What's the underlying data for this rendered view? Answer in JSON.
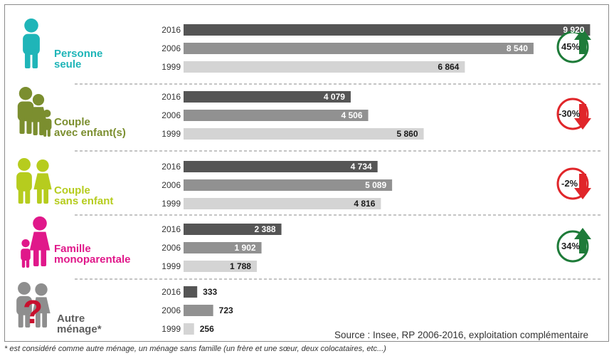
{
  "chart_data": {
    "type": "bar",
    "orientation": "horizontal",
    "years": [
      "2016",
      "2006",
      "1999"
    ],
    "year_colors": [
      "#555555",
      "#919191",
      "#d4d4d4"
    ],
    "groups": [
      {
        "label": "Personne\nseule",
        "color": "#1fb5b8",
        "icon": "single-person-icon",
        "values": [
          9920,
          8540,
          6864
        ],
        "value_labels": [
          "9 920",
          "8 540",
          "6 864"
        ],
        "change": "45%",
        "change_direction": "up",
        "change_color": "#1e7b39"
      },
      {
        "label": "Couple\navec enfant(s)",
        "color": "#7b8e2f",
        "icon": "couple-with-children-icon",
        "values": [
          4079,
          4506,
          5860
        ],
        "value_labels": [
          "4 079",
          "4 506",
          "5 860"
        ],
        "change": "-30%",
        "change_direction": "down",
        "change_color": "#e0262a"
      },
      {
        "label": "Couple\nsans enfant",
        "color": "#b6cc1e",
        "icon": "couple-no-children-icon",
        "values": [
          4734,
          5089,
          4816
        ],
        "value_labels": [
          "4 734",
          "5 089",
          "4 816"
        ],
        "change": "-2%",
        "change_direction": "down",
        "change_color": "#e0262a"
      },
      {
        "label": "Famille\nmonoparentale",
        "color": "#e0188a",
        "icon": "single-parent-family-icon",
        "values": [
          2388,
          1902,
          1788
        ],
        "value_labels": [
          "2 388",
          "1 902",
          "1 788"
        ],
        "change": "34%",
        "change_direction": "up",
        "change_color": "#1e7b39"
      },
      {
        "label": "Autre\nménage*",
        "color": "#5e5e5e",
        "icon": "other-household-icon",
        "values": [
          333,
          723,
          256
        ],
        "value_labels": [
          "333",
          "723",
          "256"
        ],
        "change": "",
        "change_direction": "",
        "change_color": ""
      }
    ],
    "xlim": [
      0,
      10000
    ],
    "grid": false
  },
  "source": "Source : Insee, RP 2006-2016, exploitation complémentaire",
  "footnote": "* est considéré comme autre ménage, un ménage sans famille (un frère et une sœur, deux colocataires, etc...)"
}
